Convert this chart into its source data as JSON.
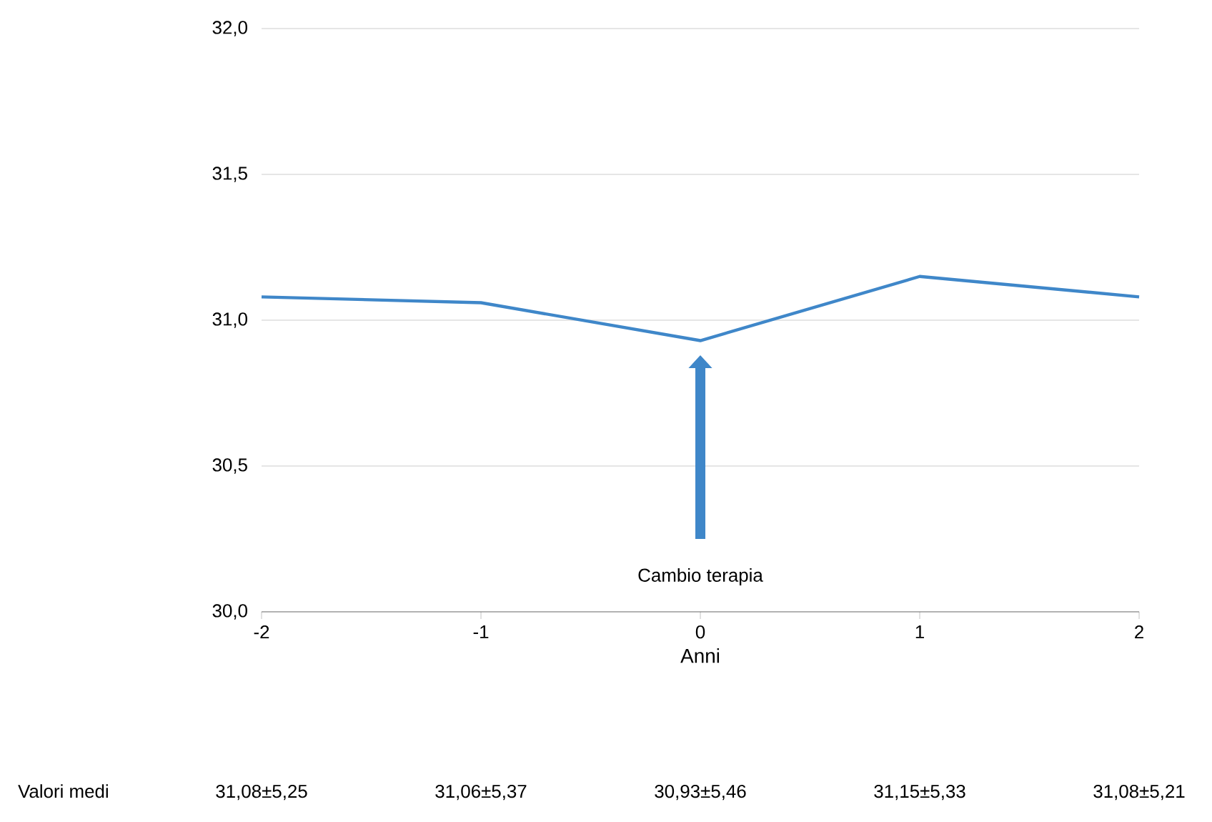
{
  "chart_data": {
    "type": "line",
    "xlabel": "Anni",
    "x": [
      -2,
      -1,
      0,
      1,
      2
    ],
    "values": [
      31.08,
      31.06,
      30.93,
      31.15,
      31.08
    ],
    "color": "#3f87c9",
    "xlim": [
      -2,
      2
    ],
    "xticks": [
      -2,
      -1,
      0,
      1,
      2
    ],
    "ylim": [
      30,
      32
    ],
    "yticks": [
      {
        "value": 30,
        "label": "30,0"
      },
      {
        "value": 30.5,
        "label": "30,5"
      },
      {
        "value": 31,
        "label": "31,0"
      },
      {
        "value": 31.5,
        "label": "31,5"
      },
      {
        "value": 32,
        "label": "32,0"
      }
    ],
    "grid": "y",
    "marker": "none",
    "line_style": "solid",
    "annotations": [
      "Cambio terapia",
      "Valori medi",
      "31,08±5,25",
      "31,06±5,37",
      "30,93±5,46",
      "31,15±5,33",
      "31,08±5,21"
    ]
  }
}
